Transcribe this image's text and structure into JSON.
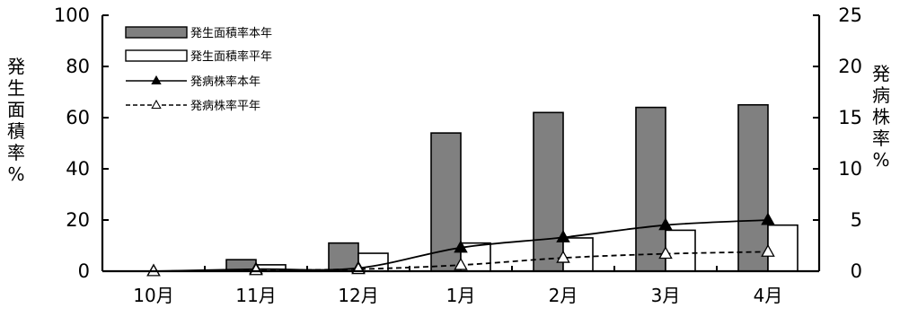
{
  "chart_data": {
    "type": "bar",
    "categories": [
      "10月",
      "11月",
      "12月",
      "1月",
      "2月",
      "3月",
      "4月"
    ],
    "left_axis": {
      "label_chars": [
        "発",
        "生",
        "面",
        "積",
        "率",
        "%"
      ],
      "ylim": [
        0,
        100
      ],
      "ticks": [
        0,
        20,
        40,
        60,
        80,
        100
      ]
    },
    "right_axis": {
      "label_chars": [
        "発",
        "病",
        "株",
        "率",
        "%"
      ],
      "ylim": [
        0,
        25
      ],
      "ticks": [
        0,
        5,
        10,
        15,
        20,
        25
      ]
    },
    "series": [
      {
        "name": "発生面積率本年",
        "kind": "bar",
        "axis": "left",
        "color": "#808080",
        "values": [
          0,
          4.5,
          11,
          54,
          62,
          64,
          65
        ]
      },
      {
        "name": "発生面積率平年",
        "kind": "bar",
        "axis": "left",
        "color": "#ffffff",
        "values": [
          0,
          2.5,
          7,
          11,
          13,
          16,
          18
        ]
      },
      {
        "name": "発病株率本年",
        "kind": "line",
        "axis": "right",
        "line_style": "solid",
        "marker": "filled-triangle",
        "values": [
          0,
          0.2,
          0.3,
          2.3,
          3.3,
          4.5,
          5.0
        ]
      },
      {
        "name": "発病株率平年",
        "kind": "line",
        "axis": "right",
        "line_style": "dashed",
        "marker": "open-triangle",
        "values": [
          0,
          0.1,
          0.2,
          0.6,
          1.3,
          1.7,
          1.9
        ]
      }
    ],
    "grid": false,
    "legend": "top-left"
  }
}
